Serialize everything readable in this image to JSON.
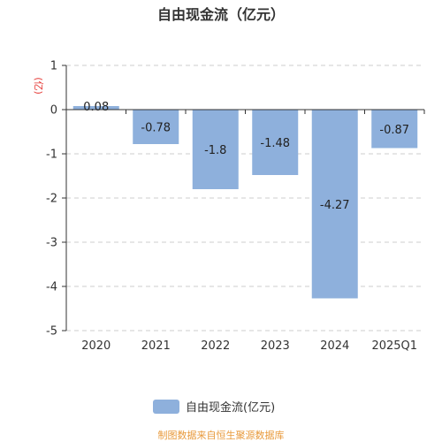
{
  "chart_data": {
    "type": "bar",
    "title": "自由现金流（亿元）",
    "xlabel": "",
    "ylabel": "(亿)",
    "categories": [
      "2020",
      "2021",
      "2022",
      "2023",
      "2024",
      "2025Q1"
    ],
    "series": [
      {
        "name": "自由现金流(亿元)",
        "values": [
          0.08,
          -0.78,
          -1.8,
          -1.48,
          -4.27,
          -0.87
        ],
        "value_labels": [
          "0.08",
          "-0.78",
          "-1.8",
          "-1.48",
          "-4.27",
          "-0.87"
        ]
      }
    ],
    "ylim": [
      -5,
      1
    ],
    "yticks": [
      1,
      0,
      -1,
      -2,
      -3,
      -4,
      -5
    ],
    "ytick_labels": [
      "1",
      "0",
      "-1",
      "-2",
      "-3",
      "-4",
      "-5"
    ],
    "grid": true,
    "legend": "bottom",
    "source": "制图数据来自恒生聚源数据库"
  },
  "colors": {
    "bar": "#8eb0dc",
    "ylabel": "#e53935",
    "source": "#e89a3c",
    "grid": "#cccccc",
    "axis": "#333333"
  }
}
